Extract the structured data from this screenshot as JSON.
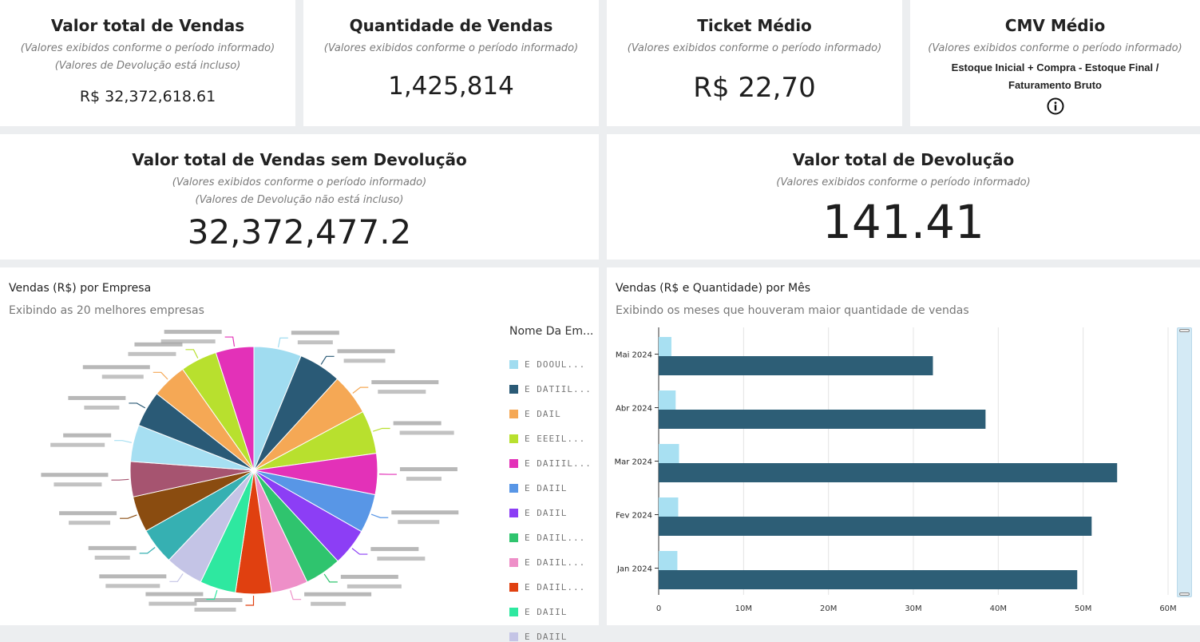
{
  "kpis": {
    "valor_total": {
      "title": "Valor total de Vendas",
      "sub1": "(Valores exibidos conforme o período informado)",
      "sub2": "(Valores de Devolução está incluso)",
      "value": "R$ 32,372,618.61"
    },
    "quantidade": {
      "title": "Quantidade de Vendas",
      "sub1": "(Valores exibidos conforme o período informado)",
      "value": "1,425,814"
    },
    "ticket": {
      "title": "Ticket Médio",
      "sub1": "(Valores exibidos conforme o período informado)",
      "value": "R$ 22,70"
    },
    "cmv": {
      "title": "CMV Médio",
      "sub1": "(Valores exibidos conforme o período informado)",
      "formula1": "Estoque Inicial + Compra - Estoque Final /",
      "formula2": "Faturamento Bruto",
      "info_icon": "info-icon"
    },
    "sem_devolucao": {
      "title": "Valor total de Vendas sem Devolução",
      "sub1": "(Valores exibidos conforme o período informado)",
      "sub2": "(Valores de Devolução não está incluso)",
      "value": "32,372,477.2"
    },
    "devolucao": {
      "title": "Valor total de Devolução",
      "sub1": "(Valores exibidos conforme o período informado)",
      "value": "141.41"
    }
  },
  "pie_card": {
    "title": "Vendas (R$) por Empresa",
    "subtitle": "Exibindo as 20 melhores empresas",
    "legend_title": "Nome Da Em...",
    "legend_labels": [
      "E DOOUL...",
      "E DATIIL...",
      "E DAIL",
      "E EEEIL...",
      "E DAIIIL...",
      "E DAIIL",
      "E DAIIL",
      "E DAIIL...",
      "E DAIIL...",
      "E DAIIL...",
      "E DAIIL",
      "E DAIIL"
    ]
  },
  "bar_card": {
    "title": "Vendas (R$ e Quantidade) por Mês",
    "subtitle": "Exibindo os meses que houveram maior quantidade de vendas"
  },
  "chart_data": [
    {
      "type": "pie",
      "title": "Vendas (R$) por Empresa",
      "values": [
        6.5,
        5.8,
        5.6,
        5.9,
        5.6,
        5.3,
        5.1,
        5.0,
        5.0,
        4.9,
        4.9,
        5.2,
        5.0,
        4.9,
        4.8,
        5.0,
        4.9,
        4.8,
        5.0,
        5.2
      ],
      "colors": [
        "#a0dcf0",
        "#2a5a76",
        "#f5a855",
        "#b8e02e",
        "#e331b8",
        "#5896e6",
        "#8c3ef5",
        "#2fc46e",
        "#ee8fc8",
        "#e04010",
        "#2ee8a0",
        "#c4c4e6",
        "#36b0b2",
        "#8a4c10",
        "#a65470",
        "#a6dff2",
        "#2a5a76",
        "#f5a855",
        "#b8e02e",
        "#e331b8"
      ]
    },
    {
      "type": "bar",
      "title": "Vendas (R$ e Quantidade) por Mês",
      "categories": [
        "Mai 2024",
        "Abr 2024",
        "Mar 2024",
        "Fev 2024",
        "Jan 2024"
      ],
      "series": [
        {
          "values": [
            1500000,
            2000000,
            2400000,
            2300000,
            2200000
          ],
          "color": "#a8e0f2"
        },
        {
          "values": [
            32300000,
            38500000,
            54000000,
            51000000,
            49300000
          ],
          "color": "#2d5e76"
        }
      ],
      "xlim": [
        0,
        60000000
      ],
      "xticks": [
        "0",
        "10M",
        "20M",
        "30M",
        "40M",
        "50M",
        "60M"
      ],
      "orientation": "horizontal"
    }
  ]
}
